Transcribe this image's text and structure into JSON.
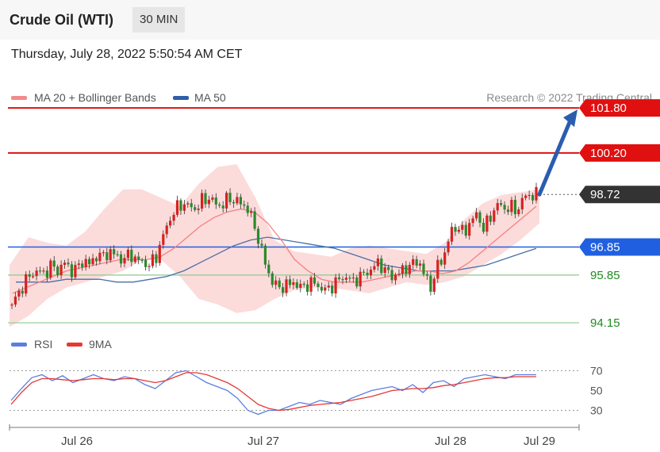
{
  "header": {
    "title": "Crude Oil (WTI)",
    "timeframe": "30 MIN",
    "datetime": "Thursday, July 28, 2022 5:50:54 AM CET"
  },
  "legend": {
    "items": [
      {
        "label": "MA 20 + Bollinger Bands",
        "color": "#f28b8b"
      },
      {
        "label": "MA 50",
        "color": "#2f5fa8"
      }
    ],
    "credit": "Research © 2022 Trading Central"
  },
  "rsi_legend": {
    "items": [
      {
        "label": "RSI",
        "color": "#5b7fe0"
      },
      {
        "label": "9MA",
        "color": "#e53935"
      }
    ]
  },
  "colors": {
    "resistance": "#e01010",
    "pivot": "#2060e0",
    "support": "#8fc98f",
    "support_text": "#1e8c1e",
    "last_price_box": "#333333",
    "band_fill": "#fcd9d9",
    "ma20": "#f58080",
    "ma50": "#4a6fa5",
    "bull_candle": "#d92020",
    "bear_candle": "#2a8a2a",
    "arrow": "#2a5db0"
  },
  "chart_data": [
    {
      "type": "candlestick",
      "title": "Crude Oil (WTI)",
      "timeframe": "30 MIN",
      "ylim": [
        93.7,
        102.2
      ],
      "x_tick_labels": [
        "Jul 26",
        "Jul 27",
        "Jul 28",
        "Jul 29"
      ],
      "levels": [
        {
          "value": 101.8,
          "label": "101.80",
          "kind": "resistance"
        },
        {
          "value": 100.2,
          "label": "100.20",
          "kind": "resistance"
        },
        {
          "value": 98.72,
          "label": "98.72",
          "kind": "last"
        },
        {
          "value": 96.85,
          "label": "96.85",
          "kind": "pivot"
        },
        {
          "value": 95.85,
          "label": "95.85",
          "kind": "support"
        },
        {
          "value": 94.15,
          "label": "94.15",
          "kind": "support"
        }
      ],
      "price_path": [
        94.8,
        95.2,
        95.6,
        95.9,
        96.0,
        95.9,
        96.2,
        96.0,
        96.3,
        96.0,
        96.1,
        96.4,
        96.2,
        96.6,
        96.5,
        96.7,
        96.5,
        96.4,
        96.6,
        96.4,
        96.3,
        96.2,
        96.5,
        97.2,
        97.8,
        98.2,
        98.4,
        98.3,
        98.2,
        98.5,
        98.6,
        98.4,
        98.3,
        98.6,
        98.5,
        98.4,
        98.2,
        97.6,
        96.8,
        96.0,
        95.5,
        95.4,
        95.5,
        95.6,
        95.4,
        95.5,
        95.6,
        95.4,
        95.3,
        95.5,
        95.7,
        95.8,
        95.6,
        95.8,
        95.9,
        96.1,
        96.3,
        96.0,
        95.8,
        95.9,
        96.1,
        96.2,
        96.4,
        95.8,
        95.4,
        96.2,
        96.6,
        97.4,
        97.6,
        97.3,
        97.8,
        98.0,
        97.5,
        97.9,
        98.4,
        98.2,
        98.3,
        98.1,
        98.6,
        98.7,
        98.72
      ],
      "ma20": [
        95.2,
        95.4,
        95.6,
        95.8,
        96.0,
        96.1,
        96.2,
        96.3,
        96.4,
        96.4,
        96.4,
        96.5,
        96.8,
        97.2,
        97.6,
        97.9,
        98.1,
        98.2,
        98.1,
        97.7,
        97.1,
        96.4,
        96.0,
        95.7,
        95.6,
        95.6,
        95.6,
        95.7,
        95.8,
        95.9,
        96.0,
        96.0,
        95.9,
        96.0,
        96.3,
        96.7,
        97.1,
        97.5,
        97.9,
        98.3
      ],
      "ma50": [
        95.6,
        95.6,
        95.6,
        95.7,
        95.7,
        95.7,
        95.6,
        95.6,
        95.7,
        95.8,
        96.0,
        96.3,
        96.6,
        96.9,
        97.1,
        97.2,
        97.1,
        97.0,
        96.9,
        96.8,
        96.6,
        96.4,
        96.2,
        96.1,
        96.0,
        96.0,
        96.0,
        96.1,
        96.2,
        96.4,
        96.6,
        96.8
      ],
      "bollinger_upper": [
        96.2,
        97.2,
        97.0,
        96.9,
        97.4,
        98.2,
        98.9,
        98.9,
        98.6,
        98.3,
        99.1,
        99.7,
        99.8,
        98.6,
        97.1,
        96.7,
        96.6,
        96.5,
        96.8,
        96.9,
        96.8,
        96.7,
        96.6,
        97.0,
        97.8,
        98.4,
        98.7,
        98.8,
        98.9
      ],
      "bollinger_lower": [
        94.0,
        94.4,
        95.0,
        95.4,
        95.6,
        95.8,
        96.0,
        96.4,
        96.4,
        95.8,
        95.0,
        94.8,
        94.5,
        94.6,
        95.0,
        95.3,
        95.4,
        95.4,
        95.3,
        95.2,
        95.4,
        95.6,
        95.5,
        95.6,
        95.8,
        96.2,
        96.6,
        97.1,
        97.7
      ],
      "projection": {
        "from": 98.72,
        "to": 101.8
      }
    },
    {
      "type": "line",
      "title": "RSI",
      "ylim": [
        20,
        80
      ],
      "y_ticks": [
        70,
        50,
        30
      ],
      "reference_lines": [
        70,
        30
      ],
      "series": [
        {
          "name": "RSI",
          "values": [
            40,
            52,
            63,
            66,
            60,
            65,
            58,
            62,
            66,
            62,
            60,
            64,
            62,
            56,
            52,
            60,
            68,
            70,
            64,
            58,
            54,
            50,
            42,
            30,
            26,
            30,
            30,
            34,
            38,
            36,
            40,
            38,
            36,
            42,
            46,
            50,
            52,
            54,
            50,
            56,
            48,
            58,
            60,
            54,
            62,
            64,
            66,
            64,
            62,
            66,
            66,
            66
          ]
        },
        {
          "name": "9MA",
          "values": [
            36,
            48,
            58,
            62,
            62,
            61,
            60,
            61,
            62,
            62,
            61,
            62,
            62,
            60,
            58,
            60,
            64,
            68,
            68,
            66,
            62,
            58,
            52,
            44,
            36,
            32,
            30,
            31,
            33,
            35,
            36,
            37,
            38,
            40,
            42,
            44,
            47,
            50,
            51,
            52,
            52,
            53,
            55,
            56,
            58,
            60,
            62,
            63,
            63,
            64,
            64,
            64
          ]
        }
      ]
    }
  ]
}
